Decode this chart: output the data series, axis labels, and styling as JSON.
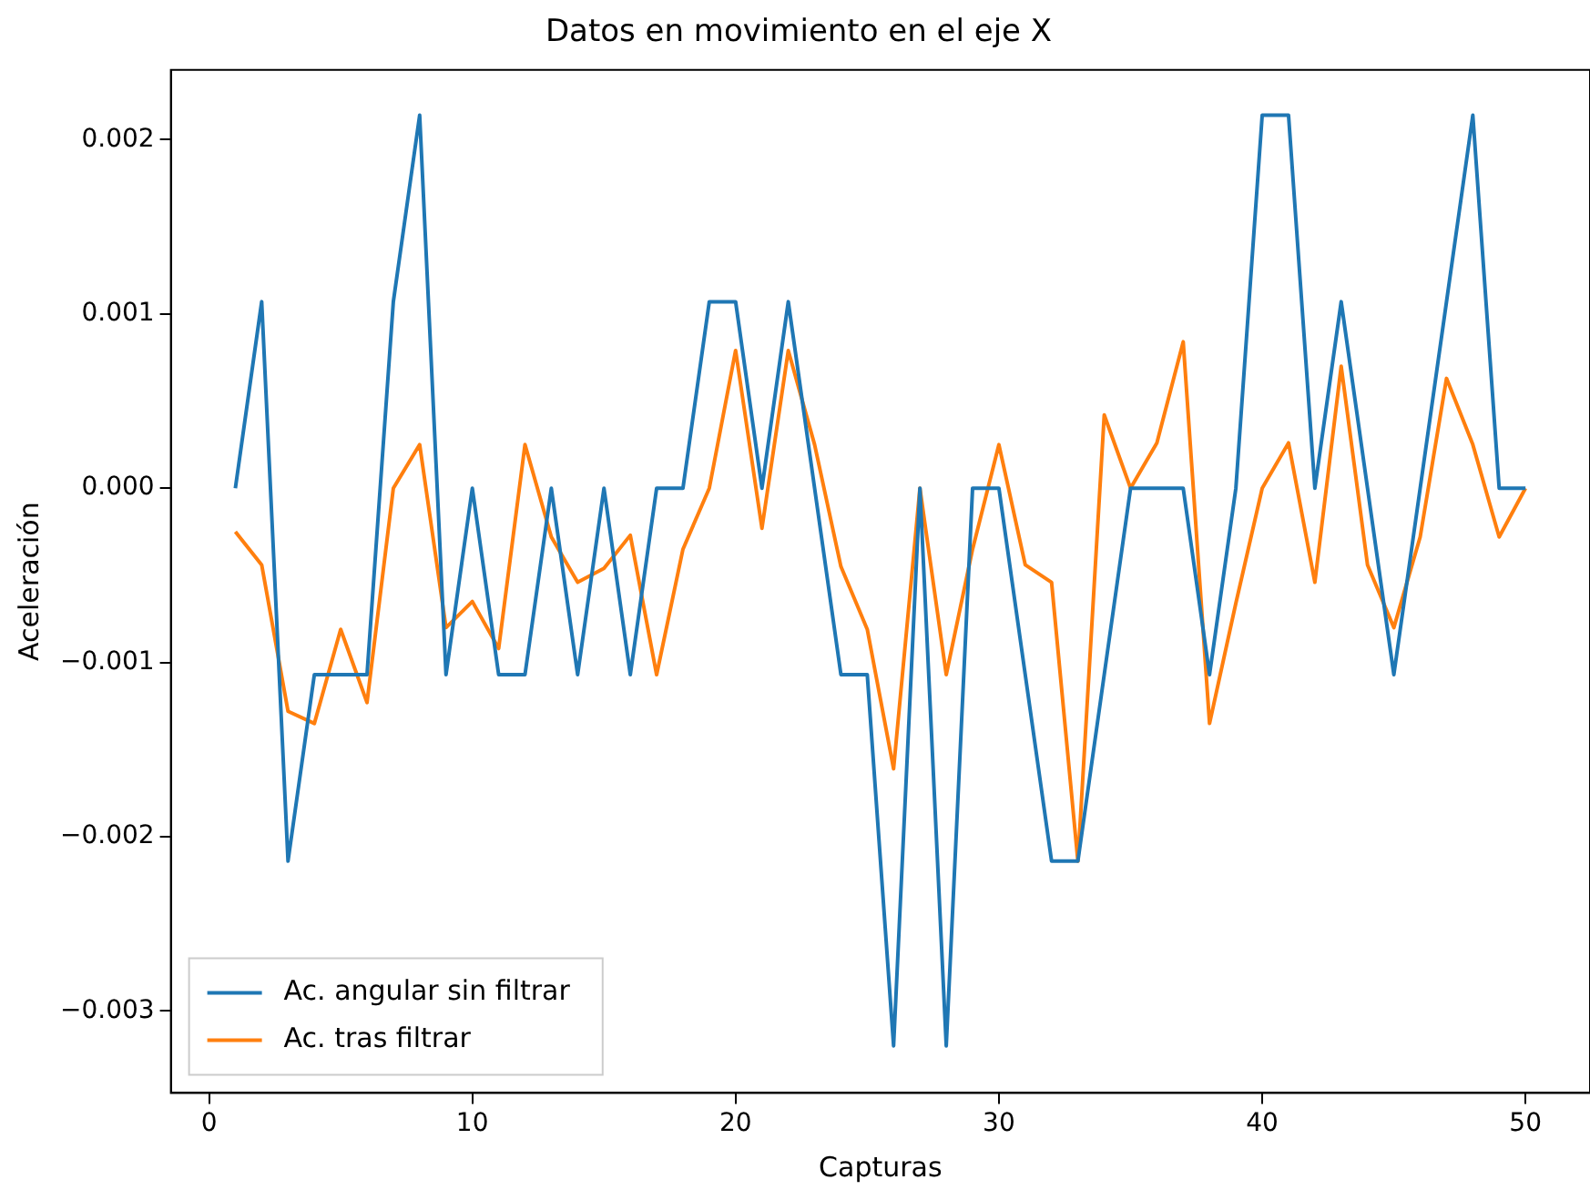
{
  "chart_data": {
    "type": "line",
    "title": "Datos en movimiento en el eje X",
    "xlabel": "Capturas",
    "ylabel": "Aceleración",
    "x": [
      1,
      2,
      3,
      4,
      5,
      6,
      7,
      8,
      9,
      10,
      11,
      12,
      13,
      14,
      15,
      16,
      17,
      18,
      19,
      20,
      21,
      22,
      23,
      24,
      25,
      26,
      27,
      28,
      29,
      30,
      31,
      32,
      33,
      34,
      35,
      36,
      37,
      38,
      39,
      40,
      41,
      42,
      43,
      44,
      45,
      46,
      47,
      48,
      49,
      50
    ],
    "series": [
      {
        "name": "Ac. angular sin filtrar",
        "color": "#1f77b4",
        "values": [
          0,
          0.00107,
          -0.00214,
          -0.00107,
          -0.00107,
          -0.00107,
          0.00107,
          0.00214,
          -0.00107,
          0,
          -0.00107,
          -0.00107,
          0,
          -0.00107,
          0,
          -0.00107,
          0,
          0,
          0.00107,
          0.00107,
          0,
          0.00107,
          0,
          -0.00107,
          -0.00107,
          -0.0032,
          0,
          -0.0032,
          0,
          0,
          -0.00107,
          -0.00214,
          -0.00214,
          -0.00107,
          0,
          0,
          0,
          -0.00107,
          0,
          0.00214,
          0.00214,
          0,
          0.00107,
          0,
          -0.00107,
          0,
          0.00107,
          0.00214,
          0,
          0
        ]
      },
      {
        "name": "Ac. tras filtrar",
        "color": "#ff7f0e",
        "values": [
          -0.00025,
          -0.00044,
          -0.00128,
          -0.00135,
          -0.00081,
          -0.00123,
          0,
          0.00025,
          -0.0008,
          -0.00065,
          -0.00092,
          0.00025,
          -0.00028,
          -0.00054,
          -0.00046,
          -0.00027,
          -0.00107,
          -0.00035,
          0,
          0.00079,
          -0.00023,
          0.00079,
          0.00025,
          -0.00045,
          -0.00081,
          -0.00161,
          0,
          -0.00107,
          -0.00035,
          0.00025,
          -0.00044,
          -0.00054,
          -0.00214,
          0.00042,
          0,
          0.00026,
          0.00084,
          -0.00135,
          -0.00066,
          0,
          0.00026,
          -0.00054,
          0.0007,
          -0.00044,
          -0.0008,
          -0.00028,
          0.00063,
          0.00025,
          -0.00028,
          0
        ]
      }
    ],
    "xlim": [
      -1.45,
      52.45
    ],
    "xticks": [
      0,
      10,
      20,
      30,
      40,
      50
    ],
    "ylim": [
      -0.00347,
      0.0024
    ],
    "yticks": [
      {
        "value": -0.003,
        "label": "−0.003"
      },
      {
        "value": -0.002,
        "label": "−0.002"
      },
      {
        "value": -0.001,
        "label": "−0.001"
      },
      {
        "value": 0,
        "label": "0.000"
      },
      {
        "value": 0.001,
        "label": "0.001"
      },
      {
        "value": 0.002,
        "label": "0.002"
      }
    ],
    "grid": false,
    "legend": "bottom left",
    "marker": "none",
    "line_style": "solid"
  }
}
